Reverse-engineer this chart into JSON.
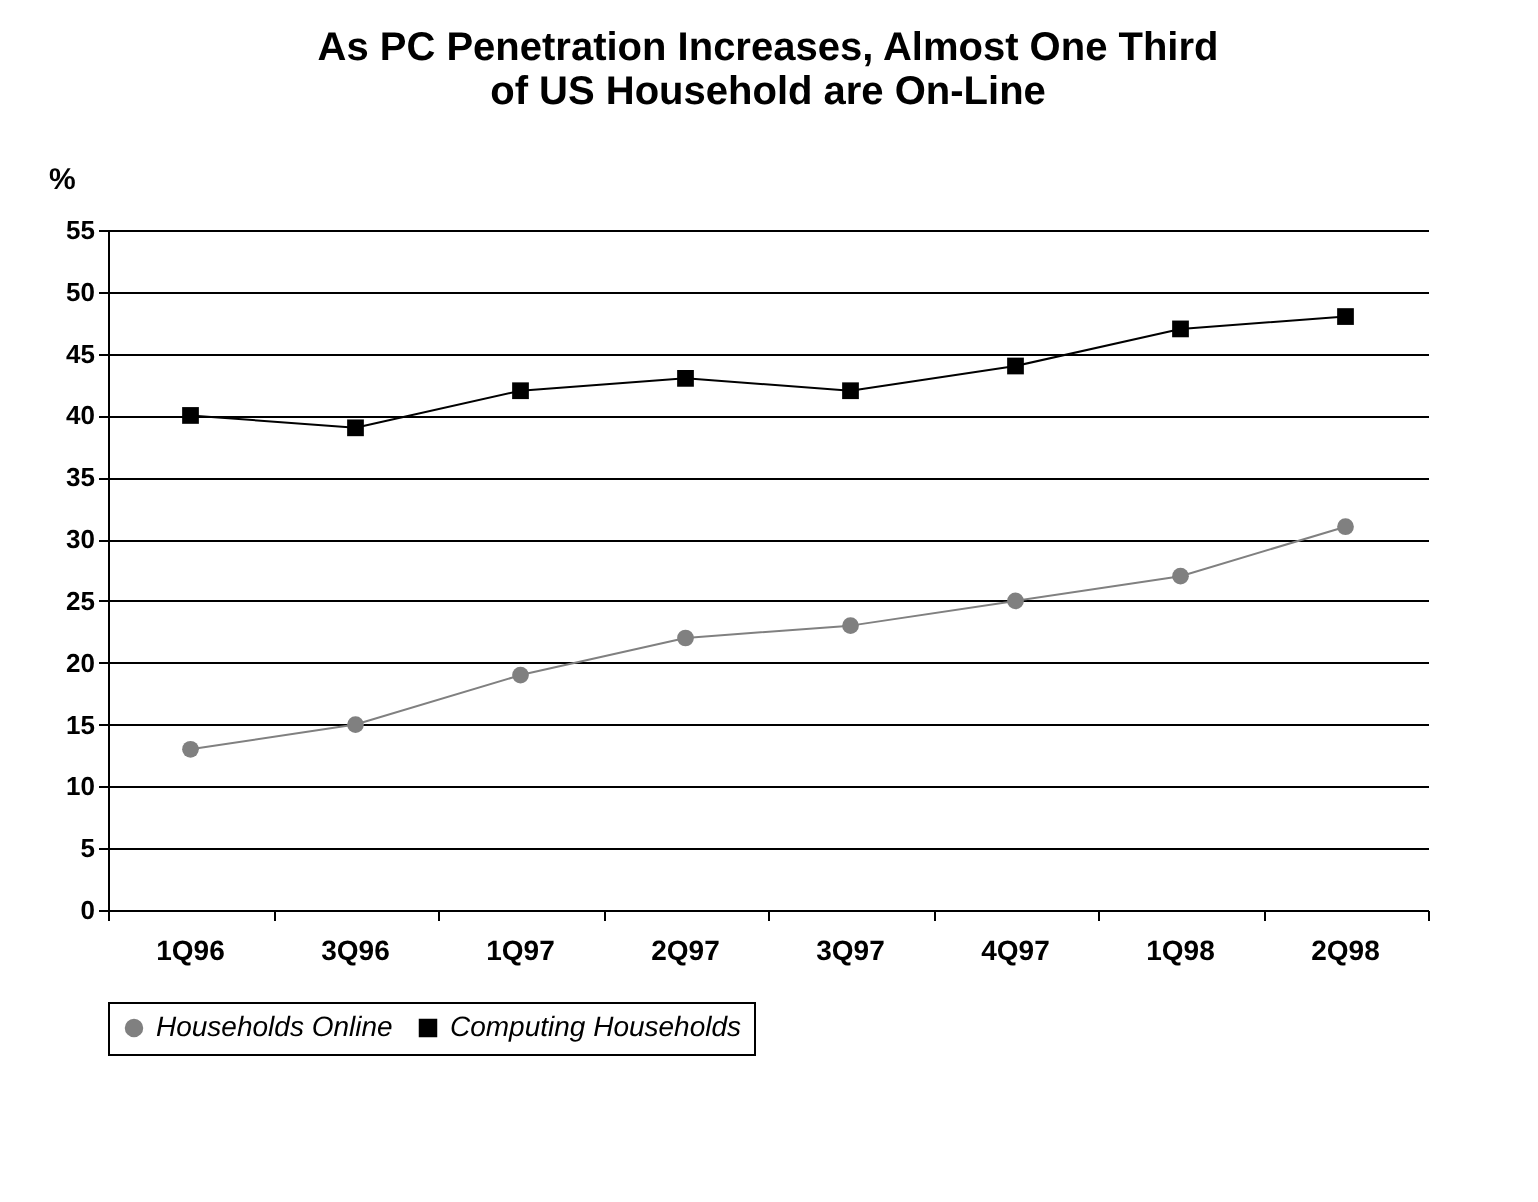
{
  "chart_data": {
    "type": "line",
    "title": "As PC Penetration Increases, Almost One Third\nof US Household are On-Line",
    "ylabel": "%",
    "categories": [
      "1Q96",
      "3Q96",
      "1Q97",
      "2Q97",
      "3Q97",
      "4Q97",
      "1Q98",
      "2Q98"
    ],
    "series": [
      {
        "name": "Households Online",
        "color": "#808080",
        "marker": "circle",
        "values": [
          13,
          15,
          19,
          22,
          23,
          25,
          27,
          31
        ]
      },
      {
        "name": "Computing Households",
        "color": "#000000",
        "marker": "square",
        "values": [
          40,
          39,
          42,
          43,
          42,
          44,
          47,
          48
        ]
      }
    ],
    "ylim": [
      0,
      55
    ],
    "yticks": [
      0,
      5,
      10,
      15,
      20,
      25,
      30,
      35,
      40,
      45,
      50,
      55
    ],
    "grid": "y",
    "legend": "bottom"
  }
}
